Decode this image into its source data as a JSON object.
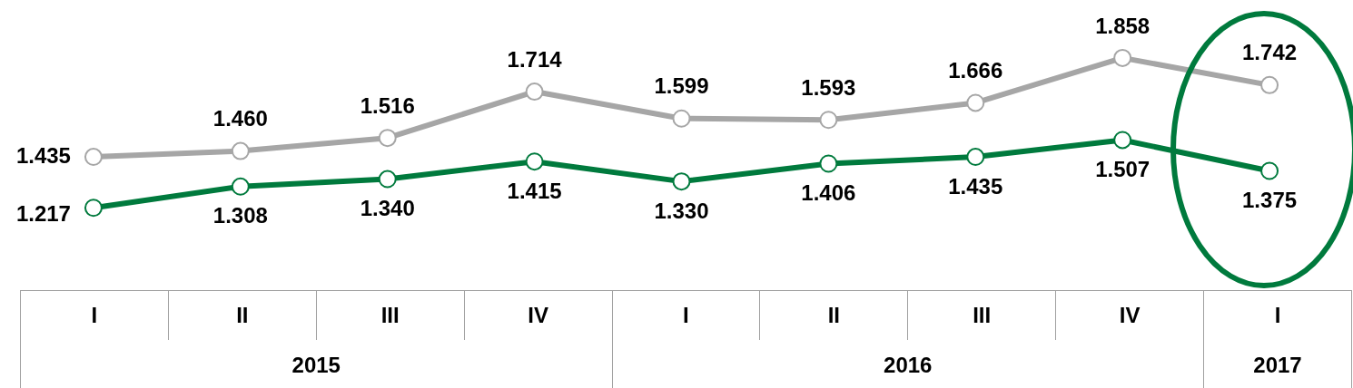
{
  "chart_data": {
    "type": "line",
    "categories": [
      "I",
      "II",
      "III",
      "IV",
      "I",
      "II",
      "III",
      "IV",
      "I"
    ],
    "series": [
      {
        "color": "#a6a6a6",
        "values": [
          1.435,
          1.46,
          1.516,
          1.714,
          1.599,
          1.593,
          1.666,
          1.858,
          1.742
        ],
        "value_labels": [
          "1.435",
          "1.460",
          "1.516",
          "1.714",
          "1.599",
          "1.593",
          "1.666",
          "1.858",
          "1.742"
        ]
      },
      {
        "color": "#007a3d",
        "values": [
          1.217,
          1.308,
          1.34,
          1.415,
          1.33,
          1.406,
          1.435,
          1.507,
          1.375
        ],
        "value_labels": [
          "1.217",
          "1.308",
          "1.340",
          "1.415",
          "1.330",
          "1.406",
          "1.435",
          "1.507",
          "1.375"
        ]
      }
    ],
    "annotations": [
      "2015",
      "2016",
      "2017"
    ],
    "marker": "circle",
    "line_style": "solid",
    "legend": false
  }
}
